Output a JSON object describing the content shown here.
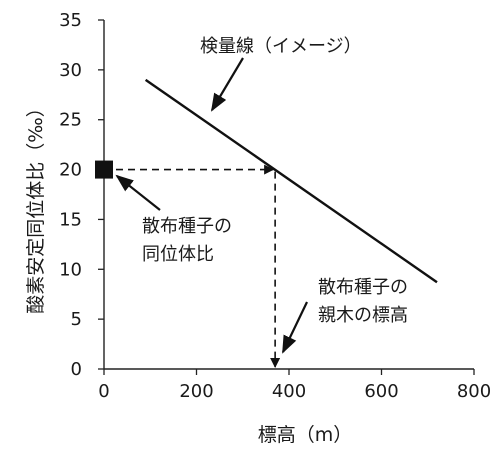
{
  "chart_data": {
    "type": "line",
    "xlabel": "標高（m）",
    "ylabel": "酸素安定同位体比（‰）",
    "xlim": [
      0,
      800
    ],
    "ylim": [
      0,
      35
    ],
    "x_ticks": [
      "0",
      "200",
      "400",
      "600",
      "800"
    ],
    "y_ticks": [
      "0",
      "5",
      "10",
      "15",
      "20",
      "25",
      "30",
      "35"
    ],
    "grid": false,
    "series": [
      {
        "name": "検量線（イメージ）",
        "x": [
          90,
          720
        ],
        "y": [
          29,
          8.7
        ]
      }
    ],
    "marker": {
      "x": 0,
      "y": 20
    },
    "projection": {
      "x": 370,
      "y": 20
    },
    "annotations": {
      "curve_label": "検量線（イメージ）",
      "marker_label_line1": "散布種子の",
      "marker_label_line2": "同位体比",
      "result_label_line1": "散布種子の",
      "result_label_line2": "親木の標高"
    }
  }
}
